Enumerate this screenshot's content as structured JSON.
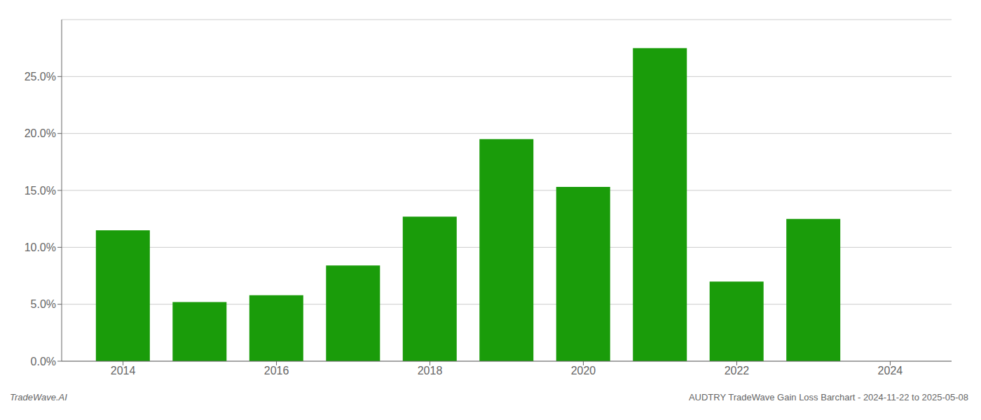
{
  "chart_data": {
    "type": "bar",
    "title": "AUDTRY TradeWave Gain Loss Barchart - 2024-11-22 to 2025-05-08",
    "annotations": [
      "TradeWave.AI"
    ],
    "x": [
      2014,
      2015,
      2016,
      2017,
      2018,
      2019,
      2020,
      2021,
      2022,
      2023
    ],
    "values": [
      0.115,
      0.052,
      0.058,
      0.084,
      0.127,
      0.195,
      0.153,
      0.275,
      0.07,
      0.125
    ],
    "color": "#1a9c0a",
    "xlim": [
      2013.2,
      2024.8
    ],
    "xticks": [
      2014,
      2016,
      2018,
      2020,
      2022,
      2024
    ],
    "ylim": [
      0,
      0.3
    ],
    "yticks": [
      {
        "value": 0.0,
        "label": "0.0%"
      },
      {
        "value": 0.05,
        "label": "5.0%"
      },
      {
        "value": 0.1,
        "label": "10.0%"
      },
      {
        "value": 0.15,
        "label": "15.0%"
      },
      {
        "value": 0.2,
        "label": "20.0%"
      },
      {
        "value": 0.25,
        "label": "25.0%"
      }
    ],
    "grid": true
  }
}
